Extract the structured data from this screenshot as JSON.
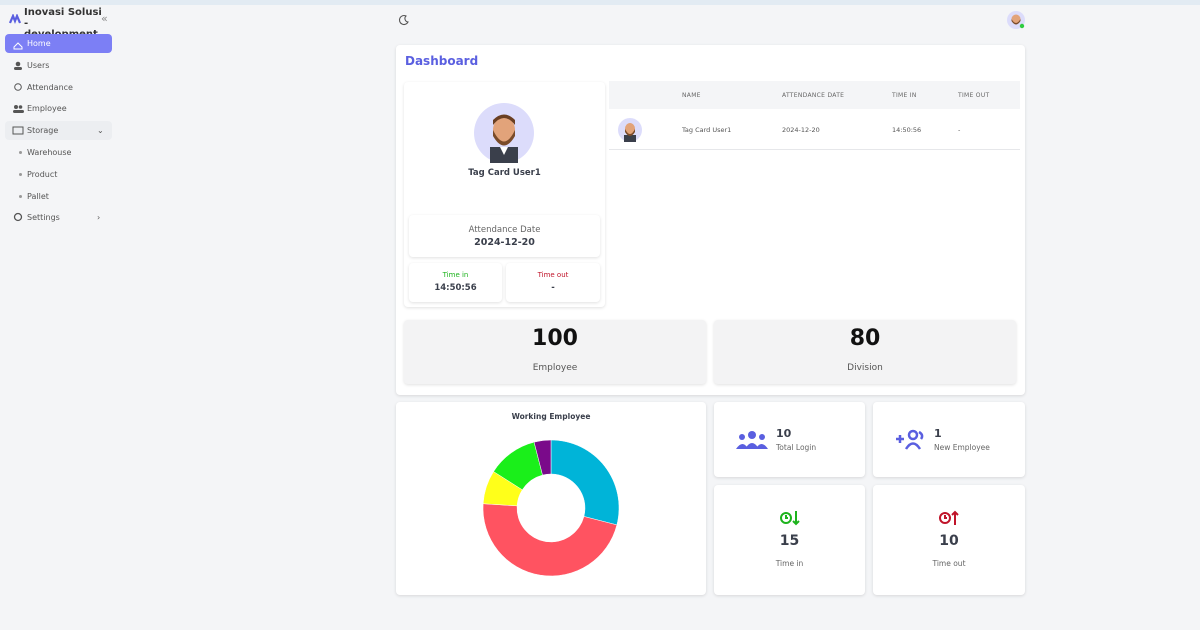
{
  "sidebar": {
    "brand": "Inovasi Solusi - development",
    "menu": [
      "Home",
      "Users",
      "Attendance",
      "Employee",
      "Storage",
      "Warehouse",
      "Product",
      "Pallet",
      "Settings"
    ]
  },
  "dashboard": {
    "title": "Dashboard",
    "profile": {
      "name": "Tag Card User1",
      "attendance_date_label": "Attendance Date",
      "attendance_date": "2024-12-20",
      "time_in_label": "Time in",
      "time_in": "14:50:56",
      "time_out_label": "Time out",
      "time_out": "-"
    },
    "table": {
      "headers": [
        "NAME",
        "ATTENDANCE DATE",
        "TIME IN",
        "TIME OUT"
      ],
      "rows": [
        [
          "Tag Card User1",
          "2024-12-20",
          "14:50:56",
          "-"
        ]
      ]
    },
    "totals": [
      {
        "value": 100,
        "label": "Employee"
      },
      {
        "value": 80,
        "label": "Division"
      }
    ]
  },
  "chart": {
    "type": "pie",
    "title": "Working Employee",
    "values": [
      29,
      47,
      8,
      12,
      4
    ],
    "colors": [
      "#00b4d8",
      "#ff5361",
      "#ffff1a",
      "#1aef1a",
      "#7a0a8a"
    ]
  },
  "stats": [
    {
      "value": 10,
      "label": "Total Login"
    },
    {
      "value": 1,
      "label": "New Employee"
    },
    {
      "value": 15,
      "label": "Time in"
    },
    {
      "value": 10,
      "label": "Time out"
    }
  ]
}
